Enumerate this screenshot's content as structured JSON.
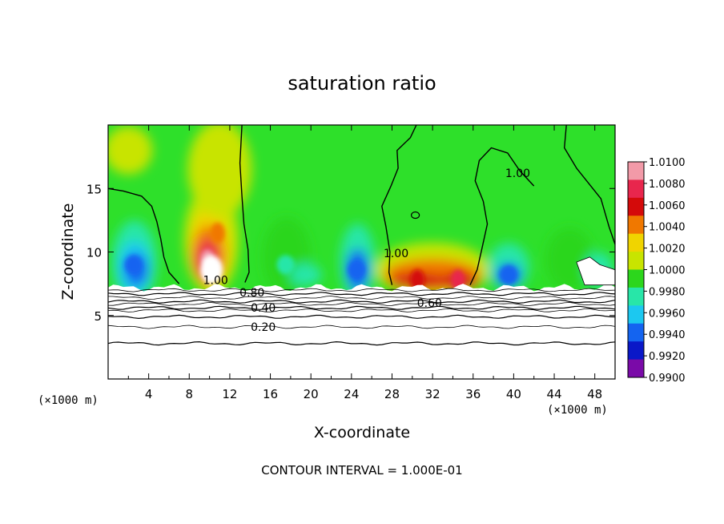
{
  "chart_data": {
    "type": "heatmap",
    "title": "saturation ratio",
    "xlabel": "X-coordinate",
    "ylabel": "Z-coordinate",
    "x_unit_left": "(×1000 m)",
    "x_unit_right": "(×1000 m)",
    "footer": "CONTOUR INTERVAL = 1.000E-01",
    "xlim": [
      0,
      50
    ],
    "ylim": [
      0,
      20
    ],
    "x_ticks": [
      4,
      8,
      12,
      16,
      20,
      24,
      28,
      32,
      36,
      40,
      44,
      48
    ],
    "y_ticks": [
      5,
      10,
      15
    ],
    "colorbar": {
      "labels": [
        "1.0100",
        "1.0080",
        "1.0060",
        "1.0040",
        "1.0020",
        "1.0000",
        "0.9980",
        "0.9960",
        "0.9940",
        "0.9920",
        "0.9900"
      ],
      "range": [
        0.99,
        1.01
      ],
      "colors": [
        "#f29aa8",
        "#e8264d",
        "#d40a0a",
        "#f07800",
        "#f0d400",
        "#c8e400",
        "#2cd61c",
        "#28e6a8",
        "#1cc8f0",
        "#1464f0",
        "#0a18c8",
        "#7a0aa8"
      ]
    },
    "contour_labels": [
      {
        "text": "1.00",
        "x": 10.6,
        "y": 7.8
      },
      {
        "text": "0.80",
        "x": 14.2,
        "y": 6.8
      },
      {
        "text": "0.40",
        "x": 15.3,
        "y": 5.6
      },
      {
        "text": "0.20",
        "x": 15.3,
        "y": 4.1
      },
      {
        "text": "0.60",
        "x": 31.7,
        "y": 6.0
      },
      {
        "text": "1.00",
        "x": 28.4,
        "y": 9.9
      },
      {
        "text": "1.00",
        "x": 40.4,
        "y": 16.2
      }
    ],
    "regions": {
      "background_value": 1.0002,
      "boundary_layer_top": 7.2,
      "hot_spots": [
        {
          "x": 9.8,
          "z": 9.4,
          "value": 1.0095
        },
        {
          "x": 30.5,
          "z": 7.8,
          "value": 1.0065
        },
        {
          "x": 34.5,
          "z": 7.8,
          "value": 1.0068
        },
        {
          "x": 10.8,
          "z": 11.5,
          "value": 1.005
        }
      ],
      "cold_spots": [
        {
          "x": 2.5,
          "z": 9.0,
          "value": 0.9935
        },
        {
          "x": 24.5,
          "z": 8.6,
          "value": 0.9938
        },
        {
          "x": 39.5,
          "z": 8.2,
          "value": 0.9942
        },
        {
          "x": 17.5,
          "z": 9.0,
          "value": 0.9975
        }
      ]
    }
  }
}
